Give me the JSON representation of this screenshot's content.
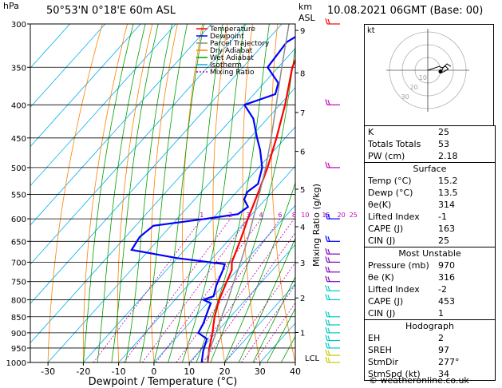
{
  "header": {
    "location": "50°53'N  0°18'E  60m  ASL",
    "datetime": "10.08.2021  06GMT  (Base: 00)",
    "hpa_label": "hPa",
    "km_label": "km",
    "asl_label": "ASL",
    "credit": "© weatheronline.co.uk"
  },
  "chart_data": {
    "type": "line",
    "title": "Skew-T Log-P Diagram",
    "xlabel": "Dewpoint / Temperature (°C)",
    "ylabel": "hPa",
    "mixing_axis_label": "Mixing Ratio (g/kg)",
    "xlim": [
      -35,
      40
    ],
    "ylim": [
      1000,
      300
    ],
    "x_ticks": [
      "-30",
      "-20",
      "-10",
      "0",
      "10",
      "20",
      "30",
      "40"
    ],
    "pressure_levels": [
      300,
      350,
      400,
      450,
      500,
      550,
      600,
      650,
      700,
      750,
      800,
      850,
      900,
      950,
      1000
    ],
    "pressure_tick_labels": [
      "300",
      "350",
      "400",
      "450",
      "500",
      "550",
      "600",
      "650",
      "700",
      "750",
      "800",
      "850",
      "900",
      "950",
      "1000"
    ],
    "km_ticks": [
      {
        "km": "9",
        "p": 307
      },
      {
        "km": "8",
        "p": 357
      },
      {
        "km": "7",
        "p": 411
      },
      {
        "km": "6",
        "p": 472
      },
      {
        "km": "5",
        "p": 540
      },
      {
        "km": "4",
        "p": 617
      },
      {
        "km": "3",
        "p": 701
      },
      {
        "km": "2",
        "p": 795
      },
      {
        "km": "1",
        "p": 899
      }
    ],
    "lcl_label": "LCL",
    "lcl_p": 983,
    "mixing_ratio_labels": [
      "1",
      "2",
      "3",
      "4",
      "6",
      "8",
      "10",
      "15",
      "20",
      "25"
    ],
    "legend": [
      {
        "name": "Temperature",
        "color": "#ff0000"
      },
      {
        "name": "Dewpoint",
        "color": "#0000ff"
      },
      {
        "name": "Parcel Trajectory",
        "color": "#8c8c8c"
      },
      {
        "name": "Dry Adiabat",
        "color": "#ff8000"
      },
      {
        "name": "Wet Adiabat",
        "color": "#00a000"
      },
      {
        "name": "Isotherm",
        "color": "#00b0f0"
      },
      {
        "name": "Mixing Ratio",
        "color": "#c000c0"
      }
    ],
    "series": [
      {
        "name": "Temperature",
        "points": [
          {
            "p": 1000,
            "t": 15.2
          },
          {
            "p": 950,
            "t": 12
          },
          {
            "p": 900,
            "t": 9
          },
          {
            "p": 850,
            "t": 5.5
          },
          {
            "p": 800,
            "t": 2.5
          },
          {
            "p": 750,
            "t": 0
          },
          {
            "p": 720,
            "t": -1.5
          },
          {
            "p": 700,
            "t": -3.5
          },
          {
            "p": 650,
            "t": -6.5
          },
          {
            "p": 600,
            "t": -10
          },
          {
            "p": 550,
            "t": -13.5
          },
          {
            "p": 500,
            "t": -17.5
          },
          {
            "p": 450,
            "t": -22.5
          },
          {
            "p": 400,
            "t": -28.5
          },
          {
            "p": 350,
            "t": -36
          },
          {
            "p": 300,
            "t": -42
          }
        ]
      },
      {
        "name": "Dewpoint",
        "points": [
          {
            "p": 1000,
            "t": 13.5
          },
          {
            "p": 960,
            "t": 11
          },
          {
            "p": 920,
            "t": 9
          },
          {
            "p": 900,
            "t": 5
          },
          {
            "p": 870,
            "t": 4
          },
          {
            "p": 830,
            "t": 2
          },
          {
            "p": 810,
            "t": 1
          },
          {
            "p": 800,
            "t": -2
          },
          {
            "p": 790,
            "t": 0
          },
          {
            "p": 760,
            "t": -2
          },
          {
            "p": 720,
            "t": -4
          },
          {
            "p": 705,
            "t": -5
          },
          {
            "p": 690,
            "t": -20
          },
          {
            "p": 670,
            "t": -35
          },
          {
            "p": 640,
            "t": -36
          },
          {
            "p": 615,
            "t": -35
          },
          {
            "p": 600,
            "t": -22
          },
          {
            "p": 590,
            "t": -14
          },
          {
            "p": 575,
            "t": -13
          },
          {
            "p": 560,
            "t": -16
          },
          {
            "p": 545,
            "t": -17
          },
          {
            "p": 530,
            "t": -16
          },
          {
            "p": 500,
            "t": -19
          },
          {
            "p": 470,
            "t": -24
          },
          {
            "p": 450,
            "t": -28
          },
          {
            "p": 420,
            "t": -34
          },
          {
            "p": 400,
            "t": -40
          },
          {
            "p": 385,
            "t": -34
          },
          {
            "p": 370,
            "t": -36
          },
          {
            "p": 350,
            "t": -43
          },
          {
            "p": 320,
            "t": -44
          },
          {
            "p": 300,
            "t": -40
          }
        ]
      },
      {
        "name": "Parcel Trajectory",
        "points": [
          {
            "p": 1000,
            "t": 15.2
          },
          {
            "p": 983,
            "t": 13.8
          },
          {
            "p": 900,
            "t": 10
          },
          {
            "p": 850,
            "t": 7.5
          },
          {
            "p": 800,
            "t": 5
          },
          {
            "p": 750,
            "t": 2
          },
          {
            "p": 700,
            "t": -1
          },
          {
            "p": 650,
            "t": -4.5
          },
          {
            "p": 600,
            "t": -8.5
          },
          {
            "p": 550,
            "t": -13
          },
          {
            "p": 500,
            "t": -18
          },
          {
            "p": 450,
            "t": -24
          },
          {
            "p": 400,
            "t": -31
          },
          {
            "p": 350,
            "t": -39
          },
          {
            "p": 300,
            "t": -48
          }
        ]
      }
    ],
    "wind_barbs": [
      {
        "p": 1000,
        "color": "#c8c800"
      },
      {
        "p": 975,
        "color": "#c8c800"
      },
      {
        "p": 950,
        "color": "#00c8c8"
      },
      {
        "p": 925,
        "color": "#00c8c8"
      },
      {
        "p": 900,
        "color": "#00c8c8"
      },
      {
        "p": 875,
        "color": "#00c8c8"
      },
      {
        "p": 850,
        "color": "#00c8c8"
      },
      {
        "p": 800,
        "color": "#00c8c8"
      },
      {
        "p": 775,
        "color": "#00c8c8"
      },
      {
        "p": 750,
        "color": "#8000c0"
      },
      {
        "p": 725,
        "color": "#8000c0"
      },
      {
        "p": 700,
        "color": "#8000c0"
      },
      {
        "p": 680,
        "color": "#8000c0"
      },
      {
        "p": 650,
        "color": "#0000ff"
      },
      {
        "p": 600,
        "color": "#0000ff"
      },
      {
        "p": 500,
        "color": "#c000c0"
      },
      {
        "p": 400,
        "color": "#c000c0"
      },
      {
        "p": 300,
        "color": "#ff0000"
      }
    ]
  },
  "hodograph": {
    "unit_label": "kt",
    "ring_labels": [
      "10",
      "20",
      "30"
    ],
    "trace": [
      [
        0,
        0
      ],
      [
        3,
        1
      ],
      [
        6,
        2
      ],
      [
        9,
        3
      ],
      [
        11,
        2
      ],
      [
        14,
        3
      ],
      [
        16,
        1
      ],
      [
        13,
        -1
      ],
      [
        10,
        -2
      ],
      [
        12,
        2
      ],
      [
        15,
        5
      ],
      [
        18,
        3
      ]
    ],
    "storm_motion": [
      10,
      -1
    ]
  },
  "indices": {
    "k_label": "K",
    "k": "25",
    "tt_label": "Totals Totals",
    "tt": "53",
    "pw_label": "PW (cm)",
    "pw": "2.18",
    "surface_header": "Surface",
    "temp_label": "Temp (°C)",
    "temp": "15.2",
    "dewp_label": "Dewp (°C)",
    "dewp": "13.5",
    "theta_label": "θe(K)",
    "theta": "314",
    "li_label": "Lifted Index",
    "li": "-1",
    "cape_label": "CAPE (J)",
    "cape": "163",
    "cin_label": "CIN (J)",
    "cin": "25",
    "mu_header": "Most Unstable",
    "mu_p_label": "Pressure (mb)",
    "mu_p": "970",
    "mu_theta_label": "θe (K)",
    "mu_theta": "316",
    "mu_li_label": "Lifted Index",
    "mu_li": "-2",
    "mu_cape_label": "CAPE (J)",
    "mu_cape": "453",
    "mu_cin_label": "CIN (J)",
    "mu_cin": "1",
    "hodo_header": "Hodograph",
    "eh_label": "EH",
    "eh": "2",
    "sreh_label": "SREH",
    "sreh": "97",
    "stmdir_label": "StmDir",
    "stmdir": "277°",
    "stmspd_label": "StmSpd (kt)",
    "stmspd": "34"
  }
}
